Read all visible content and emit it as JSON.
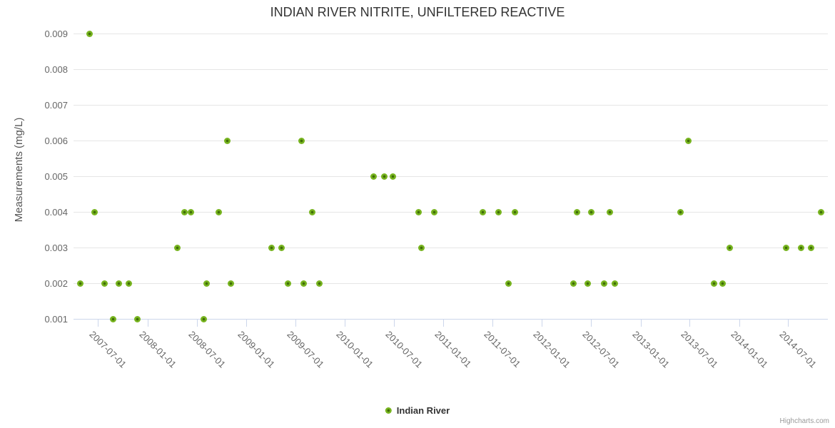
{
  "title": "INDIAN RIVER NITRITE, UNFILTERED REACTIVE",
  "credits": {
    "label": "Highcharts.com"
  },
  "colors": {
    "point_fill": "#77b41f",
    "point_core": "#3f6d07",
    "gridline": "#e6e6e6",
    "axis_line": "#ccd6eb",
    "title_text": "#333333",
    "label_text": "#666666"
  },
  "chart_data": {
    "type": "scatter",
    "title": "INDIAN RIVER NITRITE, UNFILTERED REACTIVE",
    "xlabel": "",
    "ylabel": "Measurements (mg/L)",
    "grid": "horizontal",
    "legend_position": "bottom-center",
    "xlim": [
      "2007-04-01",
      "2014-11-26"
    ],
    "ylim": [
      0.001,
      0.00934
    ],
    "x_ticks": [
      "2007-07-01",
      "2008-01-01",
      "2008-07-01",
      "2009-01-01",
      "2009-07-01",
      "2010-01-01",
      "2010-07-01",
      "2011-01-01",
      "2011-07-01",
      "2012-01-01",
      "2012-07-01",
      "2013-01-01",
      "2013-07-01",
      "2014-01-01",
      "2014-07-01"
    ],
    "y_ticks": [
      0.001,
      0.002,
      0.003,
      0.004,
      0.005,
      0.006,
      0.007,
      0.008,
      0.009
    ],
    "series": [
      {
        "name": "Indian River",
        "color": "#77b41f",
        "points": [
          [
            "2007-04-27",
            0.002
          ],
          [
            "2007-05-31",
            0.009
          ],
          [
            "2007-06-19",
            0.004
          ],
          [
            "2007-07-26",
            0.002
          ],
          [
            "2007-08-27",
            0.001
          ],
          [
            "2007-09-17",
            0.002
          ],
          [
            "2007-10-24",
            0.002
          ],
          [
            "2007-11-25",
            0.001
          ],
          [
            "2008-04-21",
            0.003
          ],
          [
            "2008-05-17",
            0.004
          ],
          [
            "2008-06-10",
            0.004
          ],
          [
            "2008-07-28",
            0.001
          ],
          [
            "2008-08-07",
            0.002
          ],
          [
            "2008-09-19",
            0.004
          ],
          [
            "2008-10-23",
            0.006
          ],
          [
            "2008-11-05",
            0.002
          ],
          [
            "2009-04-03",
            0.003
          ],
          [
            "2009-05-10",
            0.003
          ],
          [
            "2009-06-05",
            0.002
          ],
          [
            "2009-07-25",
            0.006
          ],
          [
            "2009-07-31",
            0.002
          ],
          [
            "2009-09-03",
            0.004
          ],
          [
            "2009-09-29",
            0.002
          ],
          [
            "2010-04-16",
            0.005
          ],
          [
            "2010-05-26",
            0.005
          ],
          [
            "2010-06-29",
            0.005
          ],
          [
            "2010-10-02",
            0.004
          ],
          [
            "2010-10-12",
            0.003
          ],
          [
            "2010-11-27",
            0.004
          ],
          [
            "2011-05-26",
            0.004
          ],
          [
            "2011-07-25",
            0.004
          ],
          [
            "2011-08-29",
            0.002
          ],
          [
            "2011-09-24",
            0.004
          ],
          [
            "2012-04-28",
            0.002
          ],
          [
            "2012-05-10",
            0.004
          ],
          [
            "2012-06-20",
            0.002
          ],
          [
            "2012-07-01",
            0.004
          ],
          [
            "2012-08-20",
            0.002
          ],
          [
            "2012-09-10",
            0.004
          ],
          [
            "2012-09-28",
            0.002
          ],
          [
            "2013-05-28",
            0.004
          ],
          [
            "2013-06-27",
            0.006
          ],
          [
            "2013-09-29",
            0.002
          ],
          [
            "2013-10-31",
            0.002
          ],
          [
            "2013-11-26",
            0.003
          ],
          [
            "2014-06-23",
            0.003
          ],
          [
            "2014-08-20",
            0.003
          ],
          [
            "2014-09-26",
            0.003
          ],
          [
            "2014-10-31",
            0.004
          ]
        ]
      }
    ]
  }
}
